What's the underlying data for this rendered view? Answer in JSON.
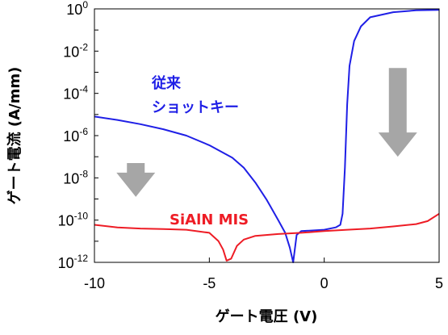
{
  "chart_data": {
    "type": "line",
    "xlabel": "ゲート電圧 (V)",
    "ylabel": "ゲート電流 (A/mm)",
    "yscale": "log",
    "xlim": [
      -10,
      5
    ],
    "ylim": [
      1e-12,
      1
    ],
    "x_ticks": [
      "-10",
      "-5",
      "0",
      "5"
    ],
    "y_ticks": [
      {
        "base": "10",
        "exp": "0"
      },
      {
        "base": "10",
        "exp": "-2"
      },
      {
        "base": "10",
        "exp": "-4"
      },
      {
        "base": "10",
        "exp": "-6"
      },
      {
        "base": "10",
        "exp": "-8"
      },
      {
        "base": "10",
        "exp": "-10"
      },
      {
        "base": "10",
        "exp": "-12"
      }
    ],
    "grid": false,
    "series": [
      {
        "color": "#1f1fe6",
        "label_lines": [
          "従来",
          "ショットキー"
        ],
        "points": [
          [
            -10,
            8e-06
          ],
          [
            -9,
            5.5e-06
          ],
          [
            -8,
            3.5e-06
          ],
          [
            -7,
            2e-06
          ],
          [
            -6,
            1e-06
          ],
          [
            -5,
            3.5e-07
          ],
          [
            -4,
            9e-08
          ],
          [
            -3.5,
            3e-08
          ],
          [
            -3,
            6e-09
          ],
          [
            -2.5,
            9e-10
          ],
          [
            -2,
            1e-10
          ],
          [
            -1.7,
            2.5e-11
          ],
          [
            -1.5,
            5e-12
          ],
          [
            -1.35,
            1e-12
          ],
          [
            -1.2,
            2e-11
          ],
          [
            -1,
            3e-11
          ],
          [
            0,
            3.5e-11
          ],
          [
            0.5,
            4.5e-11
          ],
          [
            0.7,
            6e-11
          ],
          [
            0.8,
            2e-10
          ],
          [
            0.9,
            3e-08
          ],
          [
            1.0,
            3e-05
          ],
          [
            1.1,
            0.002
          ],
          [
            1.3,
            0.03
          ],
          [
            1.6,
            0.15
          ],
          [
            2,
            0.4
          ],
          [
            3,
            0.7
          ],
          [
            4,
            0.85
          ],
          [
            5,
            0.9
          ]
        ]
      },
      {
        "color": "#ee1c25",
        "label": "SiAlN MIS",
        "points": [
          [
            -10,
            6e-11
          ],
          [
            -9,
            4.5e-11
          ],
          [
            -8,
            4e-11
          ],
          [
            -7,
            3.8e-11
          ],
          [
            -6,
            3.5e-11
          ],
          [
            -5,
            2.5e-11
          ],
          [
            -4.6,
            1e-11
          ],
          [
            -4.4,
            4e-12
          ],
          [
            -4.25,
            1.2e-12
          ],
          [
            -4.05,
            1.5e-12
          ],
          [
            -3.8,
            6e-12
          ],
          [
            -3.5,
            1.2e-11
          ],
          [
            -3,
            1.8e-11
          ],
          [
            -2,
            2.2e-11
          ],
          [
            -1,
            2.5e-11
          ],
          [
            0,
            3e-11
          ],
          [
            1,
            3.5e-11
          ],
          [
            2,
            4e-11
          ],
          [
            3,
            5e-11
          ],
          [
            4,
            6.5e-11
          ],
          [
            4.5,
            9e-11
          ],
          [
            5,
            2e-10
          ]
        ]
      }
    ],
    "annotations": [
      {
        "type": "arrow-down",
        "color": "#a6a6a6",
        "x": -8.2,
        "from_exp": -7.3,
        "to_exp": -8.9
      },
      {
        "type": "arrow-down",
        "color": "#a6a6a6",
        "x": 3.2,
        "from_exp": -2.8,
        "to_exp": -7.0
      }
    ]
  }
}
